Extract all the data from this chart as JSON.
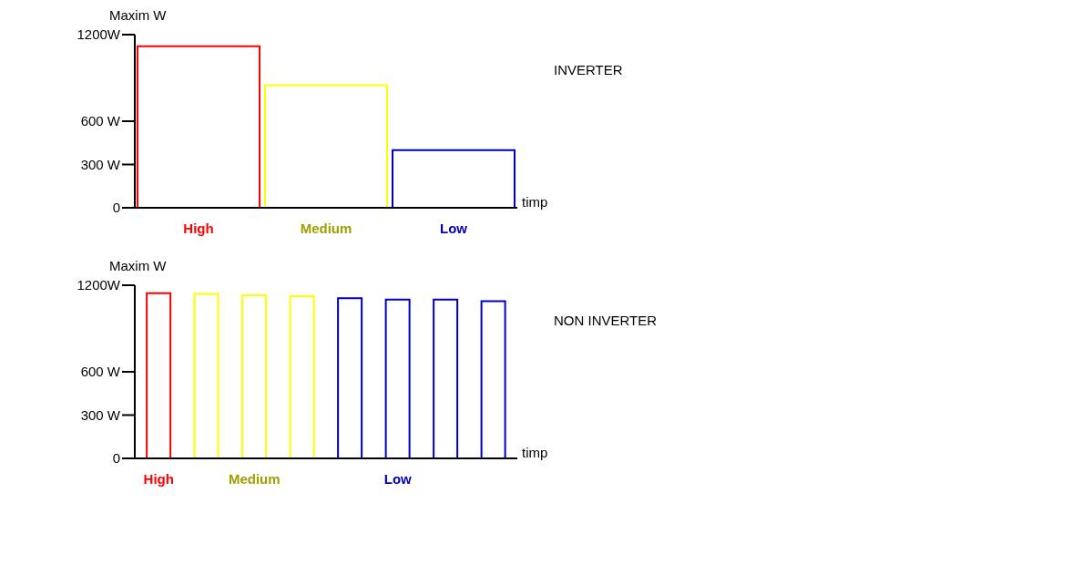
{
  "chart_data": [
    {
      "type": "bar",
      "ylabel": "Maxim W",
      "xlabel": "timp",
      "annotations": [
        "INVERTER"
      ],
      "categories": [
        "High",
        "Medium",
        "Low"
      ],
      "values": [
        1120,
        850,
        400
      ],
      "colors": [
        "#ff0000",
        "#ffff00",
        "#0000c0"
      ],
      "ylim": [
        0,
        1200
      ],
      "yticks": [
        0,
        {
          "value": 300,
          "label": "300 W"
        },
        {
          "value": 600,
          "label": "600 W"
        },
        {
          "value": 1200,
          "label": "1200W"
        }
      ],
      "grid": false,
      "legend": false
    },
    {
      "type": "bar",
      "ylabel": "Maxim W",
      "xlabel": "timp",
      "annotations": [
        "NON INVERTER"
      ],
      "categories": [
        "High",
        null,
        "Medium",
        null,
        null,
        "Low",
        null,
        null
      ],
      "values": [
        1145,
        1140,
        1130,
        1125,
        1110,
        1100,
        1100,
        1090
      ],
      "colors": [
        "#ff0000",
        "#ffff00",
        "#ffff00",
        "#ffff00",
        "#0000c0",
        "#0000c0",
        "#0000c0",
        "#0000c0"
      ],
      "ylim": [
        0,
        1200
      ],
      "yticks": [
        0,
        {
          "value": 300,
          "label": "300 W"
        },
        {
          "value": 600,
          "label": "600 W"
        },
        {
          "value": 1200,
          "label": "1200W"
        }
      ],
      "grid": false,
      "legend": false
    }
  ]
}
